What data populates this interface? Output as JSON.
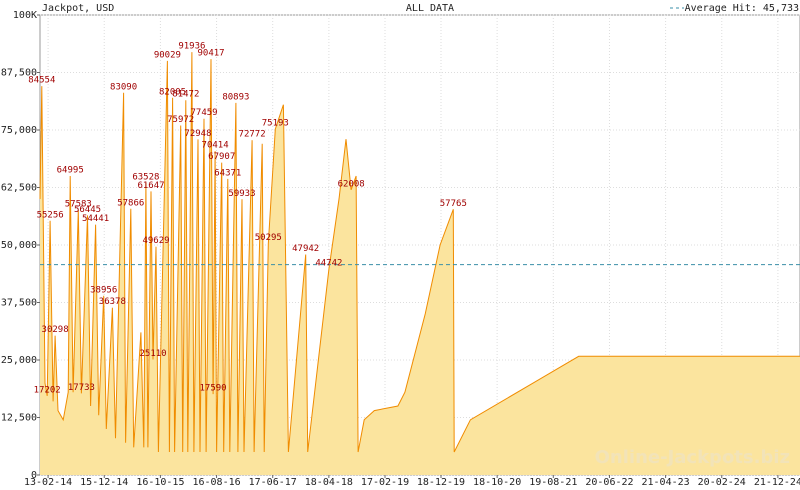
{
  "chart_data": {
    "type": "area",
    "title": "ALL DATA",
    "y_label": "Jackpot, USD",
    "watermark": "Online-Jackpots.biz",
    "average": {
      "label": "Average Hit: 45,733",
      "value": 45733,
      "color": "#3a8fa8"
    },
    "xlim": [
      "2013-12-31",
      "2025-04-20"
    ],
    "ylim": [
      0,
      100000
    ],
    "grid": true,
    "xticks": [
      {
        "value": "2014-02-13",
        "label": "13-02-14"
      },
      {
        "value": "2014-12-15",
        "label": "15-12-14"
      },
      {
        "value": "2015-10-16",
        "label": "16-10-15"
      },
      {
        "value": "2016-08-16",
        "label": "16-08-16"
      },
      {
        "value": "2017-06-17",
        "label": "17-06-17"
      },
      {
        "value": "2018-04-18",
        "label": "18-04-18"
      },
      {
        "value": "2019-02-17",
        "label": "17-02-19"
      },
      {
        "value": "2019-12-18",
        "label": "18-12-19"
      },
      {
        "value": "2020-10-18",
        "label": "18-10-20"
      },
      {
        "value": "2021-08-19",
        "label": "19-08-21"
      },
      {
        "value": "2022-06-20",
        "label": "20-06-22"
      },
      {
        "value": "2023-04-21",
        "label": "21-04-23"
      },
      {
        "value": "2024-02-20",
        "label": "20-02-24"
      },
      {
        "value": "2024-12-21",
        "label": "21-12-24"
      }
    ],
    "yticks": [
      0,
      {
        "value": 12500,
        "label": "12,500"
      },
      {
        "value": 25000,
        "label": "25,000"
      },
      {
        "value": 37500,
        "label": "37,500"
      },
      {
        "value": 50000,
        "label": "50,000"
      },
      {
        "value": 62500,
        "label": "62,500"
      },
      {
        "value": 75000,
        "label": "75,000"
      },
      {
        "value": 87500,
        "label": "87,500"
      },
      {
        "value": 100000,
        "label": "100K"
      }
    ],
    "series": [
      {
        "color": "#f08c00",
        "fill": "#fbe49e",
        "x": [
          "2013-12-31",
          "2014-01-10",
          "2014-01-27",
          "2014-02-08",
          "2014-02-24",
          "2014-03-12",
          "2014-03-23",
          "2014-04-08",
          "2014-05-06",
          "2014-06-02",
          "2014-06-13",
          "2014-06-29",
          "2014-07-27",
          "2014-08-13",
          "2014-09-15",
          "2014-10-02",
          "2014-10-29",
          "2014-11-15",
          "2014-12-12",
          "2014-12-26",
          "2015-01-28",
          "2015-02-14",
          "2015-03-30",
          "2015-04-10",
          "2015-05-08",
          "2015-05-24",
          "2015-07-02",
          "2015-07-18",
          "2015-07-29",
          "2015-08-09",
          "2015-08-26",
          "2015-09-06",
          "2015-09-22",
          "2015-10-05",
          "2015-11-23",
          "2015-12-04",
          "2015-12-21",
          "2016-01-01",
          "2016-02-03",
          "2016-02-14",
          "2016-03-02",
          "2016-03-13",
          "2016-04-04",
          "2016-04-15",
          "2016-05-07",
          "2016-05-18",
          "2016-06-09",
          "2016-06-20",
          "2016-07-17",
          "2016-07-28",
          "2016-08-08",
          "2016-08-16",
          "2016-09-13",
          "2016-09-24",
          "2016-10-16",
          "2016-10-27",
          "2016-11-29",
          "2016-12-10",
          "2017-01-01",
          "2017-01-12",
          "2017-02-25",
          "2017-03-08",
          "2017-04-21",
          "2017-05-02",
          "2017-05-24",
          "2017-07-01",
          "2017-08-14",
          "2017-09-10",
          "2017-12-13",
          "2017-12-24",
          "2018-04-18",
          "2018-06-12",
          "2018-07-20",
          "2018-08-17",
          "2018-09-13",
          "2018-09-24",
          "2018-10-27",
          "2018-12-21",
          "2019-04-28",
          "2019-06-05",
          "2019-09-23",
          "2019-12-13",
          "2020-02-23",
          "2020-02-28",
          "2020-05-26",
          "2022-01-04",
          "2025-04-20"
        ],
        "values": [
          60000,
          84554,
          20000,
          17202,
          55256,
          16000,
          30298,
          14000,
          12000,
          18000,
          64995,
          18000,
          57583,
          17733,
          56445,
          15000,
          54441,
          13000,
          38956,
          10000,
          36378,
          8000,
          83090,
          7000,
          57866,
          6000,
          31000,
          6000,
          63528,
          6000,
          61647,
          25110,
          49629,
          5000,
          90029,
          5000,
          82005,
          5000,
          75972,
          5000,
          81472,
          5000,
          91936,
          5000,
          72948,
          5000,
          77459,
          5000,
          90417,
          17590,
          70414,
          5000,
          67907,
          5000,
          64371,
          5000,
          80893,
          5000,
          59933,
          5000,
          72772,
          5000,
          72000,
          5000,
          50295,
          75193,
          80500,
          5000,
          47942,
          5000,
          44742,
          60000,
          73000,
          62008,
          65000,
          5000,
          12000,
          14000,
          15000,
          18000,
          35000,
          50000,
          57765,
          5000,
          12000,
          25800,
          25800
        ]
      }
    ],
    "annotations": [
      {
        "x": "2014-01-10",
        "value": 84554
      },
      {
        "x": "2014-02-08",
        "value": 17202
      },
      {
        "x": "2014-02-24",
        "value": 55256
      },
      {
        "x": "2014-03-23",
        "value": 30298
      },
      {
        "x": "2014-06-13",
        "value": 64995
      },
      {
        "x": "2014-07-27",
        "value": 57583
      },
      {
        "x": "2014-08-13",
        "value": 17733
      },
      {
        "x": "2014-09-15",
        "value": 56445
      },
      {
        "x": "2014-10-29",
        "value": 54441
      },
      {
        "x": "2014-12-12",
        "value": 38956
      },
      {
        "x": "2015-01-28",
        "value": 36378
      },
      {
        "x": "2015-03-30",
        "value": 83090
      },
      {
        "x": "2015-05-08",
        "value": 57866
      },
      {
        "x": "2015-07-29",
        "value": 63528
      },
      {
        "x": "2015-08-26",
        "value": 61647
      },
      {
        "x": "2015-09-06",
        "value": 25110
      },
      {
        "x": "2015-09-22",
        "value": 49629
      },
      {
        "x": "2015-11-23",
        "value": 90029
      },
      {
        "x": "2015-12-21",
        "value": 82005
      },
      {
        "x": "2016-02-03",
        "value": 75972
      },
      {
        "x": "2016-03-02",
        "value": 81472
      },
      {
        "x": "2016-04-04",
        "value": 91936
      },
      {
        "x": "2016-05-07",
        "value": 72948
      },
      {
        "x": "2016-06-09",
        "value": 77459
      },
      {
        "x": "2016-07-17",
        "value": 90417
      },
      {
        "x": "2016-07-28",
        "value": 17590
      },
      {
        "x": "2016-08-08",
        "value": 70414
      },
      {
        "x": "2016-09-13",
        "value": 67907
      },
      {
        "x": "2016-10-16",
        "value": 64371
      },
      {
        "x": "2016-11-29",
        "value": 80893
      },
      {
        "x": "2017-01-01",
        "value": 59933
      },
      {
        "x": "2017-02-25",
        "value": 72772
      },
      {
        "x": "2017-05-24",
        "value": 50295
      },
      {
        "x": "2017-07-01",
        "value": 75193
      },
      {
        "x": "2017-12-13",
        "value": 47942
      },
      {
        "x": "2018-04-18",
        "value": 44742
      },
      {
        "x": "2018-08-17",
        "value": 62008
      },
      {
        "x": "2020-02-23",
        "value": 57765
      }
    ]
  }
}
